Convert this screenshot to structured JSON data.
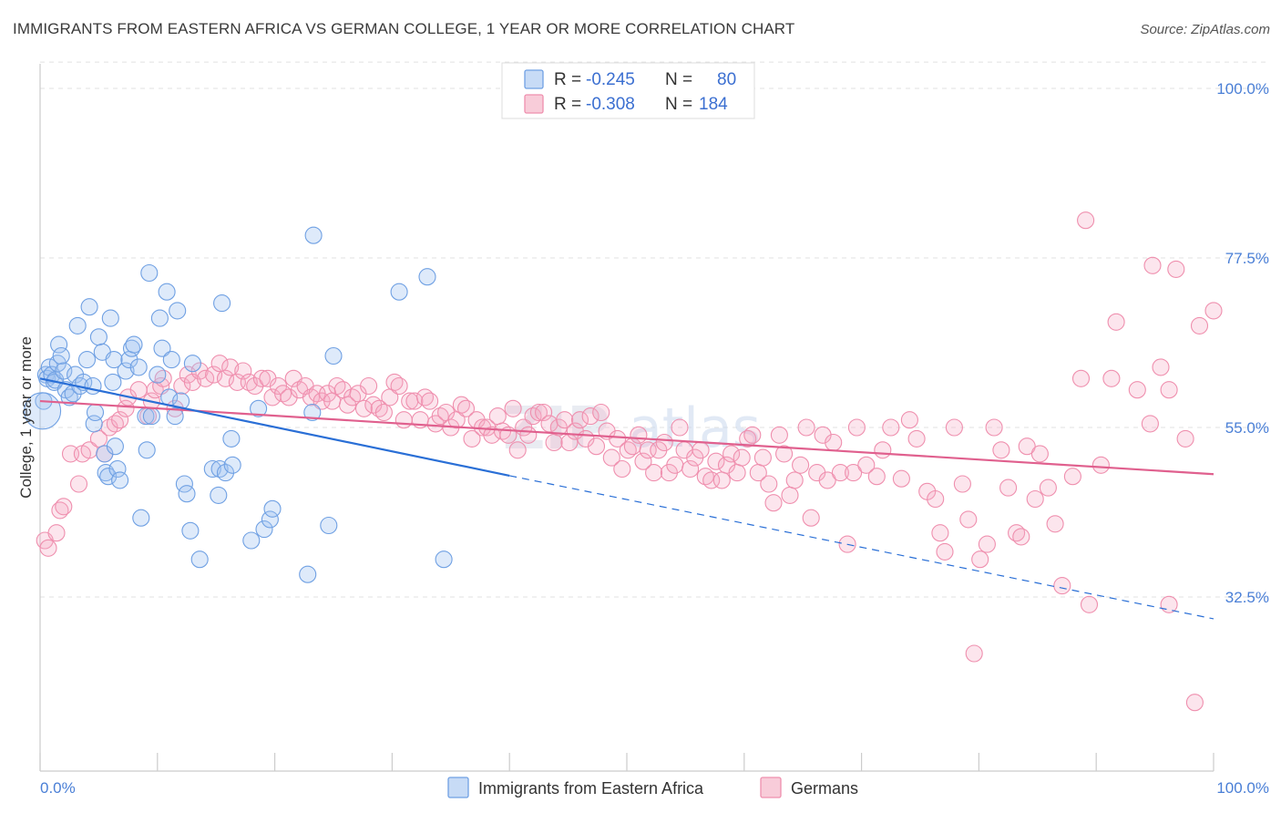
{
  "title": "IMMIGRANTS FROM EASTERN AFRICA VS GERMAN COLLEGE, 1 YEAR OR MORE CORRELATION CHART",
  "source": "Source: ZipAtlas.com",
  "watermark": {
    "part1": "ZIP",
    "part2": "atlas"
  },
  "colors": {
    "blue": "#6fa0e3",
    "blue_line": "#2a6fd6",
    "pink": "#ef8fae",
    "pink_line": "#e0608e",
    "tick": "#4a7fd6",
    "grid": "#dcdcdc"
  },
  "legend": {
    "r_label": "R =",
    "n_label": "N =",
    "rows": [
      {
        "r": "-0.245",
        "n": "80"
      },
      {
        "r": "-0.308",
        "n": "184"
      }
    ]
  },
  "chart_data": {
    "type": "scatter",
    "title": "IMMIGRANTS FROM EASTERN AFRICA VS GERMAN COLLEGE, 1 YEAR OR MORE CORRELATION CHART",
    "xlabel": "",
    "ylabel": "College, 1 year or more",
    "xlim": [
      0,
      100
    ],
    "ylim": [
      10,
      104
    ],
    "x_tick_labels": [
      "0.0%",
      "100.0%"
    ],
    "y_ticks": [
      100,
      77.5,
      55,
      32.5
    ],
    "y_tick_labels": [
      "100.0%",
      "77.5%",
      "55.0%",
      "32.5%"
    ],
    "grid": true,
    "legend_position": "top-center",
    "series": [
      {
        "name": "Immigrants from Eastern Africa",
        "color": "#6fa0e3",
        "trend": {
          "x0": 0,
          "y0": 61.5,
          "x1": 40,
          "y1": 48.6,
          "dash_to_x": 100,
          "dash_to_y": 29.6
        },
        "points": [
          [
            0.3,
            58.5
          ],
          [
            0.5,
            62
          ],
          [
            0.6,
            61.5
          ],
          [
            0.8,
            63
          ],
          [
            1,
            62
          ],
          [
            1.2,
            61
          ],
          [
            1.3,
            61.3
          ],
          [
            1.5,
            63.5
          ],
          [
            1.6,
            66
          ],
          [
            1.8,
            64.5
          ],
          [
            2,
            62.5
          ],
          [
            2.2,
            60
          ],
          [
            2.5,
            59
          ],
          [
            2.8,
            59.5
          ],
          [
            3,
            62
          ],
          [
            3.2,
            68.5
          ],
          [
            3.4,
            60.5
          ],
          [
            3.7,
            61
          ],
          [
            4,
            64
          ],
          [
            4.2,
            71
          ],
          [
            4.5,
            60.5
          ],
          [
            4.6,
            55.5
          ],
          [
            4.7,
            57
          ],
          [
            5,
            67
          ],
          [
            5.3,
            65
          ],
          [
            5.5,
            51.5
          ],
          [
            5.6,
            49
          ],
          [
            5.8,
            48.5
          ],
          [
            6,
            69.5
          ],
          [
            6.2,
            61
          ],
          [
            6.3,
            64
          ],
          [
            6.4,
            52.5
          ],
          [
            6.6,
            49.5
          ],
          [
            6.8,
            48
          ],
          [
            7.3,
            62.5
          ],
          [
            7.6,
            64
          ],
          [
            7.8,
            65.5
          ],
          [
            8,
            66
          ],
          [
            8.4,
            63
          ],
          [
            8.6,
            43
          ],
          [
            9,
            56.5
          ],
          [
            9.1,
            52
          ],
          [
            9.3,
            75.5
          ],
          [
            9.5,
            56.5
          ],
          [
            10,
            62
          ],
          [
            10.2,
            69.5
          ],
          [
            10.4,
            65.5
          ],
          [
            10.8,
            73
          ],
          [
            11,
            59
          ],
          [
            11.2,
            64
          ],
          [
            11.5,
            56.5
          ],
          [
            11.7,
            70.5
          ],
          [
            12,
            58.5
          ],
          [
            12.3,
            47.5
          ],
          [
            12.5,
            46.2
          ],
          [
            12.8,
            41.3
          ],
          [
            13,
            63.5
          ],
          [
            13.6,
            37.5
          ],
          [
            14.7,
            49.5
          ],
          [
            15.2,
            46
          ],
          [
            15.3,
            49.5
          ],
          [
            15.5,
            71.5
          ],
          [
            15.8,
            49
          ],
          [
            16.3,
            53.5
          ],
          [
            16.4,
            50
          ],
          [
            18,
            40
          ],
          [
            18.6,
            57.5
          ],
          [
            19.1,
            41.5
          ],
          [
            19.6,
            42.8
          ],
          [
            19.8,
            44.2
          ],
          [
            22.8,
            35.5
          ],
          [
            23.2,
            57
          ],
          [
            23.3,
            80.5
          ],
          [
            24.6,
            42
          ],
          [
            25,
            64.5
          ],
          [
            30.6,
            73
          ],
          [
            33,
            75
          ],
          [
            34.4,
            37.5
          ]
        ]
      },
      {
        "name": "Germans",
        "color": "#ef8fae",
        "trend": {
          "x0": 0,
          "y0": 58.5,
          "x1": 100,
          "y1": 48.8
        },
        "points": [
          [
            0.4,
            40
          ],
          [
            0.7,
            39
          ],
          [
            1.4,
            41
          ],
          [
            1.7,
            44
          ],
          [
            2,
            44.5
          ],
          [
            2.6,
            51.5
          ],
          [
            3.3,
            47.5
          ],
          [
            3.6,
            51.5
          ],
          [
            4.2,
            52
          ],
          [
            5,
            53.5
          ],
          [
            5.5,
            51.5
          ],
          [
            5.9,
            55
          ],
          [
            6.4,
            55.5
          ],
          [
            6.8,
            56
          ],
          [
            7.3,
            57.5
          ],
          [
            7.5,
            59
          ],
          [
            8.4,
            60
          ],
          [
            9.2,
            56.5
          ],
          [
            9.5,
            58.5
          ],
          [
            9.8,
            60
          ],
          [
            10.3,
            60.5
          ],
          [
            10.5,
            61.5
          ],
          [
            11.5,
            57.5
          ],
          [
            12.1,
            60.5
          ],
          [
            12.6,
            62
          ],
          [
            13,
            61
          ],
          [
            13.6,
            62.5
          ],
          [
            14.1,
            61.5
          ],
          [
            14.8,
            62
          ],
          [
            15.3,
            63.5
          ],
          [
            15.8,
            61.5
          ],
          [
            16.2,
            63
          ],
          [
            16.8,
            61
          ],
          [
            17.3,
            62.5
          ],
          [
            17.8,
            61
          ],
          [
            18.3,
            60.5
          ],
          [
            18.9,
            61.5
          ],
          [
            19.4,
            61.5
          ],
          [
            19.8,
            59
          ],
          [
            20.3,
            60.5
          ],
          [
            20.7,
            59.5
          ],
          [
            21.2,
            59
          ],
          [
            21.6,
            61.5
          ],
          [
            22.1,
            60
          ],
          [
            22.6,
            60.5
          ],
          [
            23.1,
            59
          ],
          [
            23.6,
            59.5
          ],
          [
            24,
            58.5
          ],
          [
            24.5,
            59.5
          ],
          [
            24.9,
            58.5
          ],
          [
            25.3,
            60.5
          ],
          [
            25.8,
            60
          ],
          [
            26.2,
            58
          ],
          [
            26.6,
            59
          ],
          [
            27.1,
            59.5
          ],
          [
            27.6,
            57.5
          ],
          [
            28,
            60.5
          ],
          [
            28.4,
            58
          ],
          [
            28.9,
            57.5
          ],
          [
            29.3,
            57
          ],
          [
            29.8,
            59
          ],
          [
            30.2,
            61
          ],
          [
            30.6,
            60.5
          ],
          [
            31,
            56
          ],
          [
            31.5,
            58.5
          ],
          [
            31.9,
            58.5
          ],
          [
            32.4,
            56
          ],
          [
            32.8,
            59
          ],
          [
            33.2,
            58.5
          ],
          [
            33.7,
            55.5
          ],
          [
            34.1,
            56.5
          ],
          [
            34.6,
            57
          ],
          [
            35,
            55
          ],
          [
            35.5,
            56
          ],
          [
            35.9,
            58
          ],
          [
            36.3,
            57.5
          ],
          [
            36.8,
            53.5
          ],
          [
            37.2,
            56
          ],
          [
            37.7,
            55
          ],
          [
            38.1,
            55
          ],
          [
            38.5,
            54
          ],
          [
            39,
            56.5
          ],
          [
            39.4,
            54.5
          ],
          [
            39.9,
            54
          ],
          [
            40.3,
            57.5
          ],
          [
            40.7,
            52
          ],
          [
            41.2,
            55
          ],
          [
            41.6,
            54
          ],
          [
            42,
            56.5
          ],
          [
            42.5,
            57
          ],
          [
            42.9,
            57
          ],
          [
            43.4,
            55.5
          ],
          [
            43.8,
            53
          ],
          [
            44.2,
            55
          ],
          [
            44.7,
            56
          ],
          [
            45.1,
            53
          ],
          [
            45.6,
            54.5
          ],
          [
            46,
            56
          ],
          [
            46.5,
            53.5
          ],
          [
            46.9,
            56.5
          ],
          [
            47.4,
            52.5
          ],
          [
            47.8,
            57
          ],
          [
            48.3,
            54.5
          ],
          [
            48.7,
            51
          ],
          [
            49.2,
            53.5
          ],
          [
            49.6,
            49.5
          ],
          [
            50.1,
            52
          ],
          [
            50.5,
            52.5
          ],
          [
            51,
            54
          ],
          [
            51.4,
            50.5
          ],
          [
            51.8,
            52
          ],
          [
            52.3,
            49
          ],
          [
            52.7,
            52
          ],
          [
            53.2,
            53
          ],
          [
            53.6,
            49
          ],
          [
            54.1,
            50
          ],
          [
            54.5,
            55
          ],
          [
            54.9,
            52
          ],
          [
            55.4,
            49.5
          ],
          [
            55.8,
            51
          ],
          [
            56.3,
            52
          ],
          [
            56.7,
            48.5
          ],
          [
            57.2,
            48
          ],
          [
            57.6,
            50.5
          ],
          [
            58.1,
            48
          ],
          [
            58.5,
            50
          ],
          [
            58.9,
            51.5
          ],
          [
            59.4,
            49
          ],
          [
            59.8,
            51
          ],
          [
            60.3,
            53.5
          ],
          [
            60.7,
            54
          ],
          [
            61.2,
            49
          ],
          [
            61.6,
            51
          ],
          [
            62.1,
            47.5
          ],
          [
            62.5,
            45
          ],
          [
            63,
            54
          ],
          [
            63.4,
            51.5
          ],
          [
            63.9,
            46
          ],
          [
            64.3,
            48
          ],
          [
            64.8,
            50
          ],
          [
            65.3,
            55
          ],
          [
            65.7,
            43
          ],
          [
            66.2,
            49
          ],
          [
            66.7,
            54
          ],
          [
            67.1,
            48
          ],
          [
            67.6,
            53
          ],
          [
            68.2,
            49
          ],
          [
            68.8,
            39.5
          ],
          [
            69.3,
            49
          ],
          [
            69.6,
            55
          ],
          [
            70.4,
            50
          ],
          [
            71.3,
            48.5
          ],
          [
            71.8,
            52
          ],
          [
            72.5,
            55
          ],
          [
            73.4,
            48.2
          ],
          [
            74.1,
            56
          ],
          [
            74.7,
            53.5
          ],
          [
            75.6,
            46.5
          ],
          [
            76.3,
            45.5
          ],
          [
            76.7,
            41
          ],
          [
            77.1,
            38.5
          ],
          [
            77.9,
            55
          ],
          [
            78.6,
            47.5
          ],
          [
            79.1,
            42.8
          ],
          [
            79.6,
            25
          ],
          [
            80.1,
            37.5
          ],
          [
            80.7,
            39.5
          ],
          [
            81.3,
            55
          ],
          [
            81.9,
            52
          ],
          [
            82.5,
            47
          ],
          [
            83.2,
            41
          ],
          [
            83.6,
            40.5
          ],
          [
            84.1,
            52.5
          ],
          [
            84.8,
            45.5
          ],
          [
            85.2,
            51.5
          ],
          [
            85.9,
            47
          ],
          [
            86.5,
            42.2
          ],
          [
            87.1,
            34
          ],
          [
            88,
            48.5
          ],
          [
            88.7,
            61.5
          ],
          [
            89.1,
            82.5
          ],
          [
            89.4,
            31.5
          ],
          [
            90.4,
            50
          ],
          [
            91.3,
            61.5
          ],
          [
            91.7,
            69
          ],
          [
            93.5,
            60
          ],
          [
            94.6,
            55.5
          ],
          [
            94.8,
            76.5
          ],
          [
            95.5,
            63
          ],
          [
            96.2,
            60
          ],
          [
            96.2,
            31.5
          ],
          [
            96.8,
            76
          ],
          [
            97.6,
            53.5
          ],
          [
            98.4,
            18.5
          ],
          [
            98.8,
            68.5
          ],
          [
            100,
            70.5
          ]
        ]
      }
    ]
  }
}
